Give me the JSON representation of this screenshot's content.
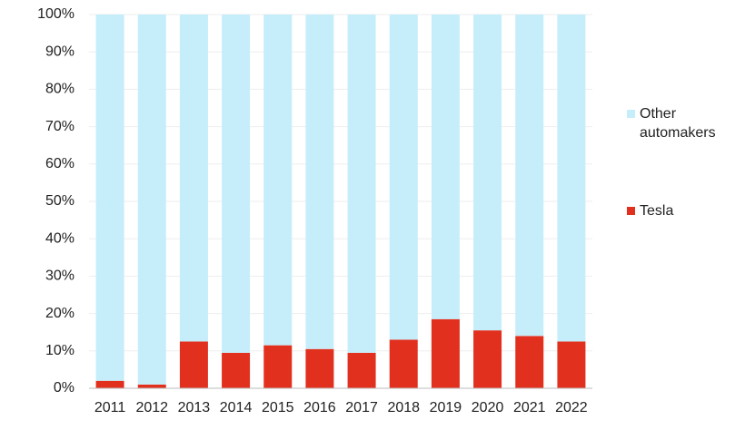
{
  "chart_data": {
    "type": "bar",
    "stacked": true,
    "categories": [
      "2011",
      "2012",
      "2013",
      "2014",
      "2015",
      "2016",
      "2017",
      "2018",
      "2019",
      "2020",
      "2021",
      "2022"
    ],
    "series": [
      {
        "name": "Tesla",
        "color": "#e2301f",
        "values": [
          2,
          1,
          12.5,
          9.5,
          11.5,
          10.5,
          9.5,
          13,
          18.5,
          15.5,
          14,
          12.5
        ]
      },
      {
        "name": "Other automakers",
        "color": "#c6eefa",
        "values": [
          98,
          99,
          87.5,
          90.5,
          88.5,
          89.5,
          90.5,
          87,
          81.5,
          84.5,
          86,
          87.5
        ]
      }
    ],
    "ylim": [
      0,
      100
    ],
    "yticks": [
      {
        "value": 0,
        "label": "0%"
      },
      {
        "value": 10,
        "label": "10%"
      },
      {
        "value": 20,
        "label": "20%"
      },
      {
        "value": 30,
        "label": "30%"
      },
      {
        "value": 40,
        "label": "40%"
      },
      {
        "value": 50,
        "label": "50%"
      },
      {
        "value": 60,
        "label": "60%"
      },
      {
        "value": 70,
        "label": "70%"
      },
      {
        "value": 80,
        "label": "80%"
      },
      {
        "value": 90,
        "label": "90%"
      },
      {
        "value": 100,
        "label": "100%"
      }
    ],
    "grid": true,
    "legend": "right"
  }
}
